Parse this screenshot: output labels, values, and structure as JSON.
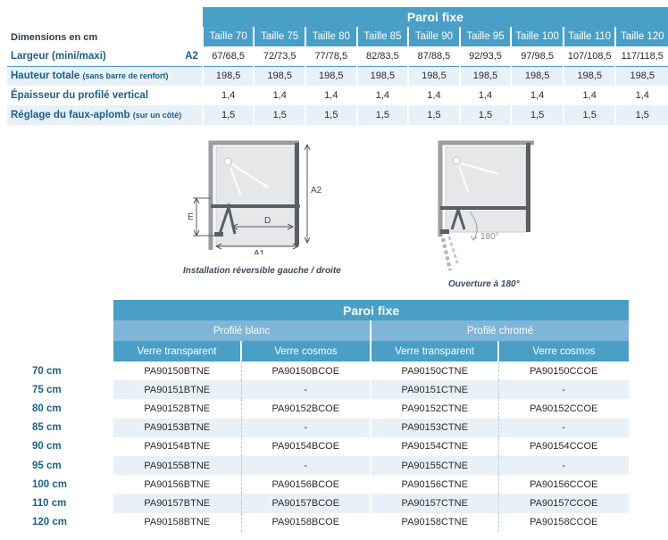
{
  "dimensions_table": {
    "band_title": "Paroi fixe",
    "corner_label": "Dimensions en cm",
    "sizes": [
      "Taille 70",
      "Taille 75",
      "Taille 80",
      "Taille 85",
      "Taille 90",
      "Taille 95",
      "Taille 100",
      "Taille 110",
      "Taille 120"
    ],
    "rows": [
      {
        "label": "Largeur (mini/maxi)",
        "sub": "",
        "tag": "A2",
        "values": [
          "67/68,5",
          "72/73,5",
          "77/78,5",
          "82/83,5",
          "87/88,5",
          "92/93,5",
          "97/98,5",
          "107/108,5",
          "117/118,5"
        ]
      },
      {
        "label": "Hauteur totale",
        "sub": "(sans barre de renfort)",
        "tag": "",
        "values": [
          "198,5",
          "198,5",
          "198,5",
          "198,5",
          "198,5",
          "198,5",
          "198,5",
          "198,5",
          "198,5"
        ]
      },
      {
        "label": "Épaisseur du profilé vertical",
        "sub": "",
        "tag": "",
        "values": [
          "1,4",
          "1,4",
          "1,4",
          "1,4",
          "1,4",
          "1,4",
          "1,4",
          "1,4",
          "1,4"
        ]
      },
      {
        "label": "Réglage du faux-aplomb",
        "sub": "(sur un côté)",
        "tag": "",
        "values": [
          "1,5",
          "1,5",
          "1,5",
          "1,5",
          "1,5",
          "1,5",
          "1,5",
          "1,5",
          "1,5"
        ]
      }
    ]
  },
  "diagrams": {
    "left": {
      "labels": {
        "a2": "A2",
        "e": "E",
        "d": "D",
        "a1": "A1"
      },
      "caption": "Installation réversible gauche / droite"
    },
    "right": {
      "angle": "180°",
      "caption": "Ouverture à 180°"
    },
    "colors": {
      "frame": "#9a9ea3",
      "panel": "#5a5f66",
      "glass": "#e6e7e9",
      "dim": "#555b61"
    }
  },
  "reference_table": {
    "band_title": "Paroi fixe",
    "profiles": [
      "Profilé blanc",
      "Profilé chromé"
    ],
    "verres": [
      "Verre transparent",
      "Verre cosmos",
      "Verre transparent",
      "Verre cosmos"
    ],
    "rows": [
      {
        "size": "70 cm",
        "refs": [
          "PA90150BTNE",
          "PA90150BCOE",
          "PA90150CTNE",
          "PA90150CCOE"
        ]
      },
      {
        "size": "75 cm",
        "refs": [
          "PA90151BTNE",
          "-",
          "PA90151CTNE",
          "-"
        ]
      },
      {
        "size": "80 cm",
        "refs": [
          "PA90152BTNE",
          "PA90152BCOE",
          "PA90152CTNE",
          "PA90152CCOE"
        ]
      },
      {
        "size": "85 cm",
        "refs": [
          "PA90153BTNE",
          "-",
          "PA90153CTNE",
          "-"
        ]
      },
      {
        "size": "90 cm",
        "refs": [
          "PA90154BTNE",
          "PA90154BCOE",
          "PA90154CTNE",
          "PA90154CCOE"
        ]
      },
      {
        "size": "95 cm",
        "refs": [
          "PA90155BTNE",
          "-",
          "PA90155CTNE",
          "-"
        ]
      },
      {
        "size": "100 cm",
        "refs": [
          "PA90156BTNE",
          "PA90156BCOE",
          "PA90156CTNE",
          "PA90156CCOE"
        ]
      },
      {
        "size": "110 cm",
        "refs": [
          "PA90157BTNE",
          "PA90157BCOE",
          "PA90157CTNE",
          "PA90157CCOE"
        ]
      },
      {
        "size": "120 cm",
        "refs": [
          "PA90158BTNE",
          "PA90158BCOE",
          "PA90158CTNE",
          "PA90158CCOE"
        ]
      }
    ]
  },
  "colors": {
    "band": "#4a9fc7",
    "band_light": "#7fb5d6",
    "row_alt": "#e8f1f7",
    "label": "#1d5f8a"
  }
}
